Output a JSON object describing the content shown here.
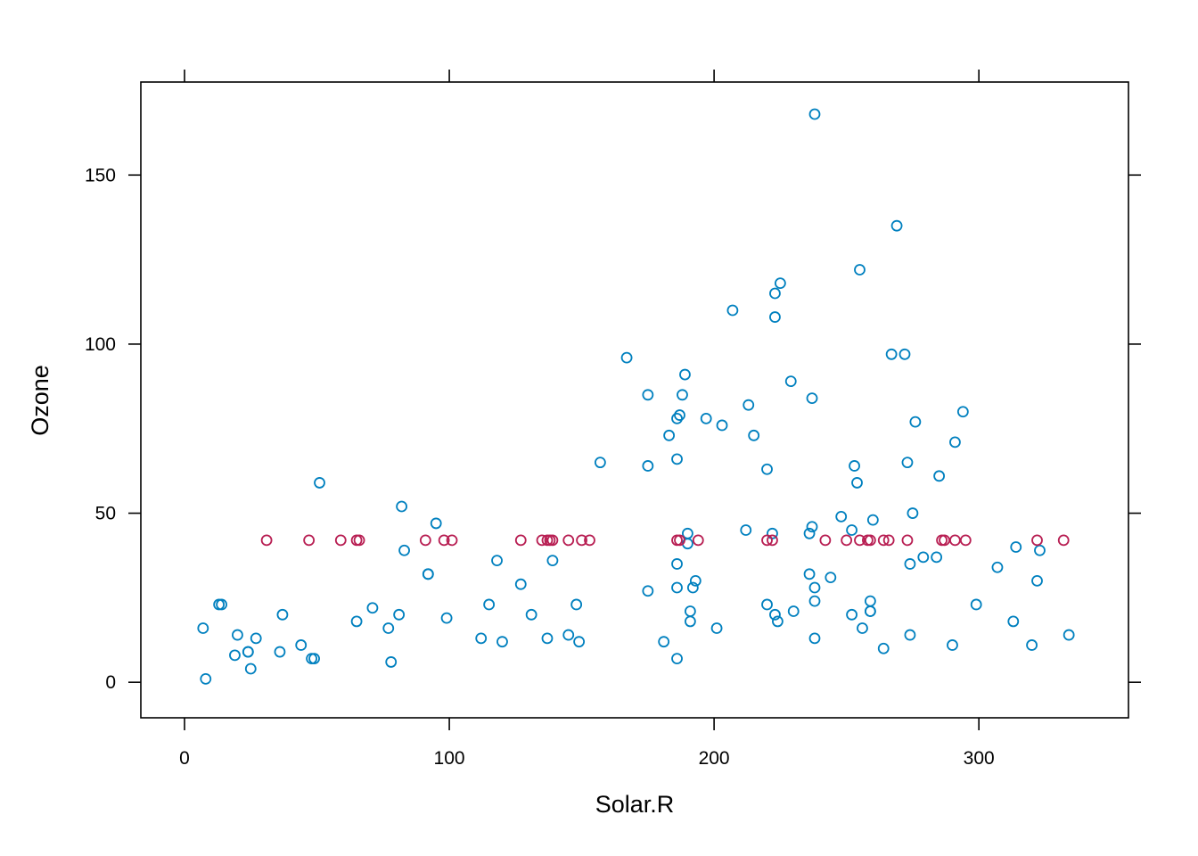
{
  "chart_data": {
    "type": "scatter",
    "title": "",
    "xlabel": "Solar.R",
    "ylabel": "Ozone",
    "xlim": [
      -16.5,
      356.5
    ],
    "ylim": [
      -10.5,
      177.5
    ],
    "xticks": [
      0,
      100,
      200,
      300
    ],
    "yticks": [
      0,
      50,
      100,
      150
    ],
    "xtick_labels": [
      "0",
      "100",
      "200",
      "300"
    ],
    "ytick_labels": [
      "0",
      "50",
      "100",
      "150"
    ],
    "grid": false,
    "legend": null,
    "series": [
      {
        "color": "#0080BF",
        "marker": "open-circle",
        "points": [
          [
            190,
            41
          ],
          [
            118,
            36
          ],
          [
            149,
            12
          ],
          [
            313,
            18
          ],
          [
            299,
            23
          ],
          [
            99,
            19
          ],
          [
            19,
            8
          ],
          [
            256,
            16
          ],
          [
            290,
            11
          ],
          [
            274,
            14
          ],
          [
            65,
            18
          ],
          [
            334,
            14
          ],
          [
            307,
            34
          ],
          [
            78,
            6
          ],
          [
            322,
            30
          ],
          [
            44,
            11
          ],
          [
            8,
            1
          ],
          [
            320,
            11
          ],
          [
            25,
            4
          ],
          [
            92,
            32
          ],
          [
            13,
            23
          ],
          [
            252,
            45
          ],
          [
            223,
            115
          ],
          [
            279,
            37
          ],
          [
            127,
            29
          ],
          [
            291,
            71
          ],
          [
            323,
            39
          ],
          [
            148,
            23
          ],
          [
            191,
            21
          ],
          [
            284,
            37
          ],
          [
            37,
            20
          ],
          [
            120,
            12
          ],
          [
            137,
            13
          ],
          [
            269,
            135
          ],
          [
            248,
            49
          ],
          [
            236,
            32
          ],
          [
            175,
            64
          ],
          [
            314,
            40
          ],
          [
            276,
            77
          ],
          [
            267,
            97
          ],
          [
            272,
            97
          ],
          [
            175,
            85
          ],
          [
            264,
            10
          ],
          [
            175,
            27
          ],
          [
            48,
            7
          ],
          [
            260,
            48
          ],
          [
            274,
            35
          ],
          [
            285,
            61
          ],
          [
            187,
            79
          ],
          [
            220,
            63
          ],
          [
            7,
            16
          ],
          [
            294,
            80
          ],
          [
            223,
            108
          ],
          [
            81,
            20
          ],
          [
            82,
            52
          ],
          [
            213,
            82
          ],
          [
            275,
            50
          ],
          [
            253,
            64
          ],
          [
            254,
            59
          ],
          [
            83,
            39
          ],
          [
            24,
            9
          ],
          [
            77,
            16
          ],
          [
            255,
            122
          ],
          [
            229,
            89
          ],
          [
            207,
            110
          ],
          [
            222,
            44
          ],
          [
            192,
            28
          ],
          [
            273,
            65
          ],
          [
            157,
            65
          ],
          [
            71,
            22
          ],
          [
            51,
            59
          ],
          [
            115,
            23
          ],
          [
            244,
            31
          ],
          [
            190,
            44
          ],
          [
            259,
            21
          ],
          [
            36,
            9
          ],
          [
            212,
            45
          ],
          [
            238,
            168
          ],
          [
            215,
            73
          ],
          [
            203,
            76
          ],
          [
            225,
            118
          ],
          [
            237,
            84
          ],
          [
            188,
            85
          ],
          [
            167,
            96
          ],
          [
            197,
            78
          ],
          [
            183,
            73
          ],
          [
            189,
            91
          ],
          [
            95,
            47
          ],
          [
            92,
            32
          ],
          [
            252,
            20
          ],
          [
            220,
            23
          ],
          [
            230,
            21
          ],
          [
            259,
            24
          ],
          [
            236,
            44
          ],
          [
            259,
            21
          ],
          [
            238,
            28
          ],
          [
            24,
            9
          ],
          [
            112,
            13
          ],
          [
            237,
            46
          ],
          [
            224,
            18
          ],
          [
            27,
            13
          ],
          [
            238,
            24
          ],
          [
            201,
            16
          ],
          [
            238,
            13
          ],
          [
            14,
            23
          ],
          [
            139,
            36
          ],
          [
            49,
            7
          ],
          [
            20,
            14
          ],
          [
            193,
            30
          ],
          [
            145,
            14
          ],
          [
            191,
            18
          ],
          [
            131,
            20
          ],
          [
            223,
            20
          ],
          [
            186,
            28
          ],
          [
            186,
            35
          ],
          [
            186,
            7
          ],
          [
            186,
            66
          ],
          [
            186,
            78
          ],
          [
            181,
            12
          ]
        ]
      },
      {
        "color": "#B81F53",
        "marker": "open-circle",
        "points": [
          [
            31,
            42
          ],
          [
            47,
            42
          ],
          [
            59,
            42
          ],
          [
            65,
            42
          ],
          [
            66,
            42
          ],
          [
            91,
            42
          ],
          [
            98,
            42
          ],
          [
            101,
            42
          ],
          [
            127,
            42
          ],
          [
            135,
            42
          ],
          [
            137,
            42
          ],
          [
            138,
            42
          ],
          [
            139,
            42
          ],
          [
            145,
            42
          ],
          [
            150,
            42
          ],
          [
            153,
            42
          ],
          [
            186,
            42
          ],
          [
            187,
            42
          ],
          [
            194,
            42
          ],
          [
            220,
            42
          ],
          [
            222,
            42
          ],
          [
            242,
            42
          ],
          [
            250,
            42
          ],
          [
            255,
            42
          ],
          [
            258,
            42
          ],
          [
            259,
            42
          ],
          [
            264,
            42
          ],
          [
            266,
            42
          ],
          [
            273,
            42
          ],
          [
            286,
            42
          ],
          [
            287,
            42
          ],
          [
            291,
            42
          ],
          [
            295,
            42
          ],
          [
            322,
            42
          ],
          [
            332,
            42
          ]
        ]
      }
    ]
  }
}
